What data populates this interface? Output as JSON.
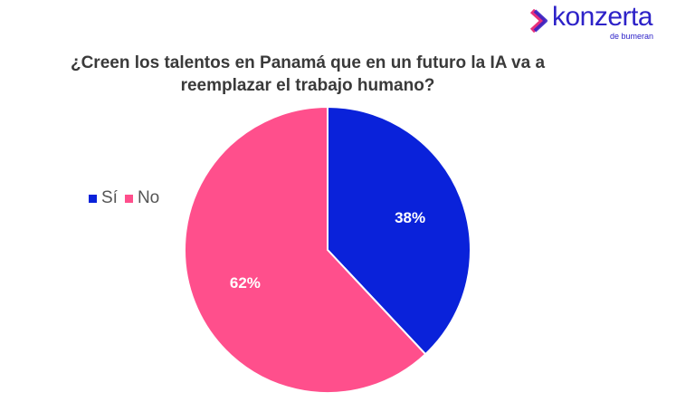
{
  "logo": {
    "text": "konzerta",
    "subtext": "de bumeran"
  },
  "chart_data": {
    "type": "pie",
    "title": "¿Creen los talentos en Panamá que en un futuro la IA va a reemplazar el trabajo humano?",
    "categories": [
      "Sí",
      "No"
    ],
    "values": [
      38,
      62
    ],
    "labels": [
      "38%",
      "62%"
    ],
    "colors": [
      "#0A22DA",
      "#FF4F8C"
    ],
    "legend_position": "left"
  }
}
